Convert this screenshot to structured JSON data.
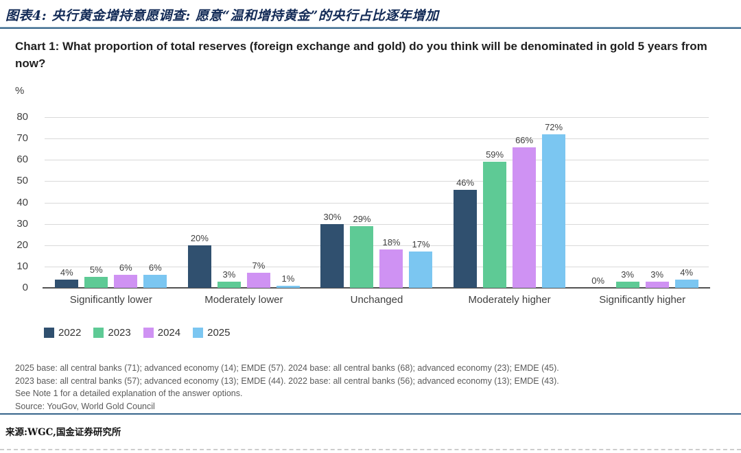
{
  "page": {
    "report_title": "图表4: 央行黄金增持意愿调查: 愿意“温和增持黄金”的央行占比逐年增加",
    "footer_source": "来源:WGC,国金证券研究所"
  },
  "chart_data": {
    "type": "bar",
    "title": "Chart 1: What proportion of total reserves (foreign exchange and gold) do you think will be denominated in gold 5 years from now?",
    "unit_label": "%",
    "categories": [
      "Significantly lower",
      "Moderately lower",
      "Unchanged",
      "Moderately higher",
      "Significantly higher"
    ],
    "series": [
      {
        "name": "2022",
        "color": "#30506f",
        "values": [
          4,
          20,
          30,
          46,
          0
        ]
      },
      {
        "name": "2023",
        "color": "#5eca95",
        "values": [
          5,
          3,
          29,
          59,
          3
        ]
      },
      {
        "name": "2024",
        "color": "#cf92f3",
        "values": [
          6,
          7,
          18,
          66,
          3
        ]
      },
      {
        "name": "2025",
        "color": "#7bc6f1",
        "values": [
          6,
          1,
          17,
          72,
          4
        ]
      }
    ],
    "ylim": [
      0,
      80
    ],
    "yticks": [
      0,
      10,
      20,
      30,
      40,
      50,
      60,
      70,
      80
    ],
    "grid": true,
    "legend_position": "bottom",
    "data_label_format": "percent"
  },
  "footnotes": [
    "2025 base: all central banks (71); advanced economy (14); EMDE (57). 2024 base: all central banks (68); advanced economy (23); EMDE (45).",
    "2023 base: all central banks (57); advanced economy (13); EMDE (44). 2022 base: all central banks (56); advanced economy (13); EMDE (43).",
    "See Note 1 for a detailed explanation of the answer options.",
    "Source: YouGov, World Gold Council"
  ]
}
